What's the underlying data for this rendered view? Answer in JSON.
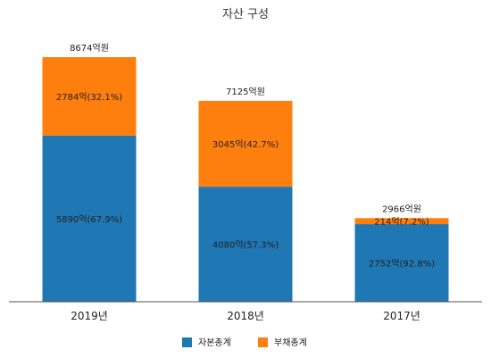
{
  "chart_data": {
    "type": "bar",
    "stacked": true,
    "title": "자산 구성",
    "categories": [
      "2019년",
      "2018년",
      "2017년"
    ],
    "series": [
      {
        "name": "자본총계",
        "color": "#1f77b4",
        "values": [
          5890,
          4080,
          2752
        ],
        "labels": [
          "5890억(67.9%)",
          "4080억(57.3%)",
          "2752억(92.8%)"
        ]
      },
      {
        "name": "부채총계",
        "color": "#ff7f0e",
        "values": [
          2784,
          3045,
          214
        ],
        "labels": [
          "2784억(32.1%)",
          "3045억(42.7%)",
          "214억(7.2%)"
        ]
      }
    ],
    "totals": [
      "8674억원",
      "7125억원",
      "2966억원"
    ],
    "legend_position": "bottom",
    "grid": false
  }
}
